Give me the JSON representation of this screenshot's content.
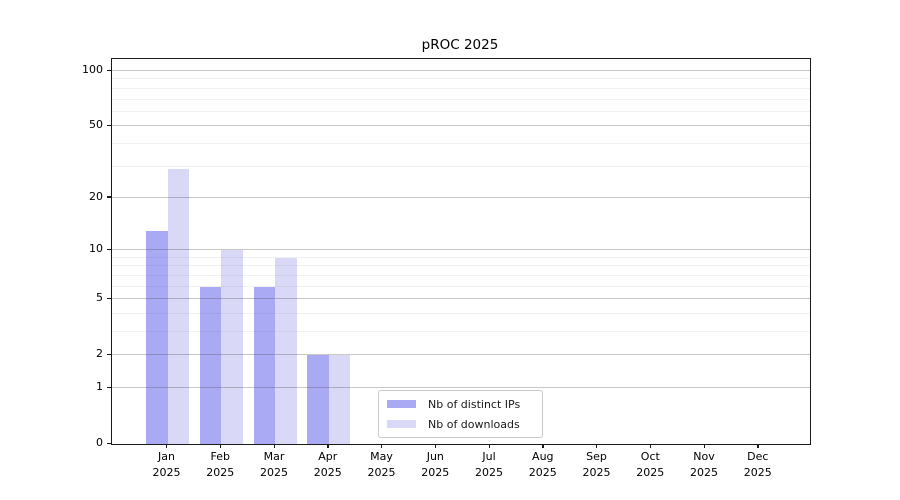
{
  "page": {
    "title": "pROC 2025"
  },
  "chart_data": {
    "type": "bar",
    "title": "pROC 2025",
    "categories": [
      "Jan",
      "Feb",
      "Mar",
      "Apr",
      "May",
      "Jun",
      "Jul",
      "Aug",
      "Sep",
      "Oct",
      "Nov",
      "Dec"
    ],
    "category_year": "2025",
    "series": [
      {
        "name": "Nb of distinct IPs",
        "color": "#a9a9f4",
        "values": [
          13,
          6,
          6,
          2,
          0,
          0,
          0,
          0,
          0,
          0,
          0,
          0
        ]
      },
      {
        "name": "Nb of downloads",
        "color": "#d9d9f7",
        "values": [
          29,
          10,
          9,
          2,
          0,
          0,
          0,
          0,
          0,
          0,
          0,
          0
        ]
      }
    ],
    "y_axis": {
      "scale": "log10(1+v)",
      "tick_labels": [
        "0",
        "1",
        "2",
        "5",
        "10",
        "20",
        "50",
        "100"
      ],
      "tick_values": [
        0,
        1,
        2,
        5,
        10,
        20,
        50,
        100
      ],
      "minor_gridlines": [
        3,
        4,
        6,
        7,
        8,
        9,
        30,
        40,
        60,
        70,
        80,
        90
      ],
      "ylim": [
        0,
        116
      ]
    },
    "x_axis": {
      "tick_count": 12
    },
    "legend": {
      "entries": [
        "Nb of distinct IPs",
        "Nb of downloads"
      ],
      "position": "bottom-center"
    },
    "grid": true
  }
}
